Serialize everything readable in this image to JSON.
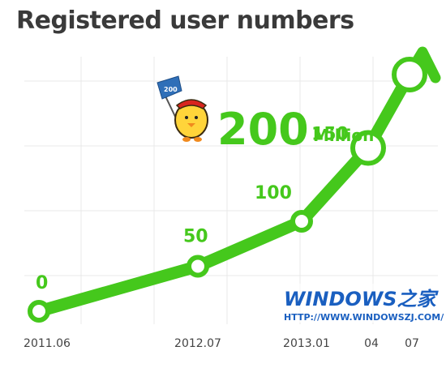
{
  "chart_data": {
    "type": "line",
    "title": "Registered user numbers",
    "unit": "Million",
    "categories": [
      "2011.06",
      "2012.07",
      "2013.01",
      "04",
      "07"
    ],
    "values": [
      0,
      50,
      100,
      150,
      200
    ],
    "data_labels": [
      "0",
      "50",
      "100",
      "150",
      "200"
    ],
    "callout": {
      "value": "200",
      "unit": "Million"
    },
    "colors": {
      "line": "#45c81c",
      "label": "#45c81c",
      "axis_text": "#444444",
      "grid": "#e8e8e8",
      "title": "#3a3a3a"
    },
    "grid": true,
    "trend_arrow": true
  },
  "mascot": {
    "flag_text": "200"
  },
  "watermark": {
    "brand": "WINDOWS之家",
    "url": "HTTP://WWW.WINDOWSZJ.COM/"
  }
}
